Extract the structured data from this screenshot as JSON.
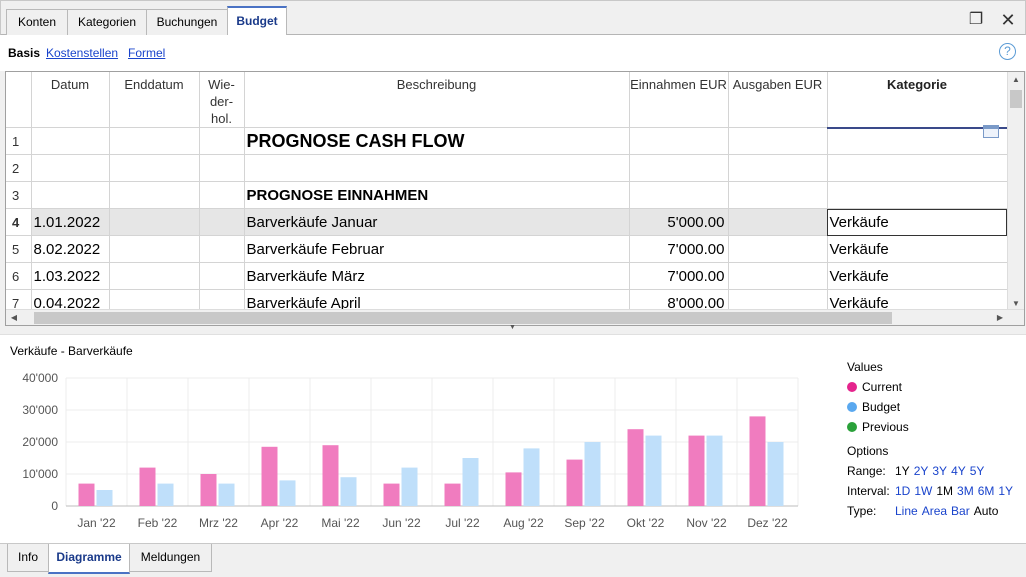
{
  "top_tabs": [
    {
      "label": "Konten",
      "active": false
    },
    {
      "label": "Kategorien",
      "active": false
    },
    {
      "label": "Buchungen",
      "active": false
    },
    {
      "label": "Budget",
      "active": true
    }
  ],
  "sub_views": [
    {
      "label": "Basis",
      "current": true
    },
    {
      "label": "Kostenstellen",
      "current": false
    },
    {
      "label": "Formel",
      "current": false
    }
  ],
  "help_label": "?",
  "columns": {
    "datum": "Datum",
    "enddatum": "Enddatum",
    "wiederholen": "Wie-\nder-\nhol.",
    "beschreibung": "Beschreibung",
    "einnahmen": "Einnahmen EUR",
    "ausgaben": "Ausgaben EUR",
    "kategorie": "Kategorie"
  },
  "rows": [
    {
      "nr": "1",
      "datum": "",
      "enddatum": "",
      "wiederholen": "",
      "beschreibung": "PROGNOSE CASH FLOW",
      "einnahmen": "",
      "ausgaben": "",
      "kategorie": "",
      "style": "big"
    },
    {
      "nr": "2",
      "datum": "",
      "enddatum": "",
      "wiederholen": "",
      "beschreibung": "",
      "einnahmen": "",
      "ausgaben": "",
      "kategorie": "",
      "style": ""
    },
    {
      "nr": "3",
      "datum": "",
      "enddatum": "",
      "wiederholen": "",
      "beschreibung": "PROGNOSE EINNAHMEN",
      "einnahmen": "",
      "ausgaben": "",
      "kategorie": "",
      "style": "section"
    },
    {
      "nr": "4",
      "datum": "1.01.2022",
      "enddatum": "",
      "wiederholen": "",
      "beschreibung": "Barverkäufe Januar",
      "einnahmen": "5'000.00",
      "ausgaben": "",
      "kategorie": "Verkäufe",
      "style": "selected"
    },
    {
      "nr": "5",
      "datum": "8.02.2022",
      "enddatum": "",
      "wiederholen": "",
      "beschreibung": "Barverkäufe Februar",
      "einnahmen": "7'000.00",
      "ausgaben": "",
      "kategorie": "Verkäufe",
      "style": ""
    },
    {
      "nr": "6",
      "datum": "1.03.2022",
      "enddatum": "",
      "wiederholen": "",
      "beschreibung": "Barverkäufe März",
      "einnahmen": "7'000.00",
      "ausgaben": "",
      "kategorie": "Verkäufe",
      "style": ""
    },
    {
      "nr": "7",
      "datum": "0.04.2022",
      "enddatum": "",
      "wiederholen": "",
      "beschreibung": "Barverkäufe April",
      "einnahmen": "8'000.00",
      "ausgaben": "",
      "kategorie": "Verkäufe",
      "style": ""
    }
  ],
  "chart_title": "Verkäufe - Barverkäufe",
  "chart_data": {
    "type": "bar",
    "title": "Verkäufe - Barverkäufe",
    "categories": [
      "Jan '22",
      "Feb '22",
      "Mrz '22",
      "Apr '22",
      "Mai '22",
      "Jun '22",
      "Jul '22",
      "Aug '22",
      "Sep '22",
      "Okt '22",
      "Nov '22",
      "Dez '22"
    ],
    "y_ticks": [
      "0",
      "10'000",
      "20'000",
      "30'000",
      "40'000"
    ],
    "ylim": [
      0,
      40000
    ],
    "grid": true,
    "series": [
      {
        "name": "Current",
        "color": "#f07cbf",
        "values": [
          7000,
          12000,
          10000,
          18500,
          19000,
          7000,
          7000,
          10500,
          14500,
          24000,
          22000,
          28000
        ]
      },
      {
        "name": "Budget",
        "color": "#bfdffa",
        "values": [
          5000,
          7000,
          7000,
          8000,
          9000,
          12000,
          15000,
          18000,
          20000,
          22000,
          22000,
          20000
        ]
      }
    ]
  },
  "legend": {
    "heading": "Values",
    "items": [
      {
        "label": "Current",
        "color": "#e5248d"
      },
      {
        "label": "Budget",
        "color": "#5aa8ef"
      },
      {
        "label": "Previous",
        "color": "#2aa13a"
      }
    ]
  },
  "options": {
    "heading": "Options",
    "range_label": "Range:",
    "range": [
      {
        "t": "1Y",
        "link": false
      },
      {
        "t": "2Y",
        "link": true
      },
      {
        "t": "3Y",
        "link": true
      },
      {
        "t": "4Y",
        "link": true
      },
      {
        "t": "5Y",
        "link": true
      }
    ],
    "interval_label": "Interval:",
    "interval": [
      {
        "t": "1D",
        "link": true
      },
      {
        "t": "1W",
        "link": true
      },
      {
        "t": "1M",
        "link": false
      },
      {
        "t": "3M",
        "link": true
      },
      {
        "t": "6M",
        "link": true
      },
      {
        "t": "1Y",
        "link": true
      }
    ],
    "type_label": "Type:",
    "type": [
      {
        "t": "Line",
        "link": true
      },
      {
        "t": "Area",
        "link": true
      },
      {
        "t": "Bar",
        "link": true
      },
      {
        "t": "Auto",
        "link": false
      }
    ]
  },
  "bottom_tabs": [
    {
      "label": "Info",
      "active": false
    },
    {
      "label": "Diagramme",
      "active": true
    },
    {
      "label": "Meldungen",
      "active": false
    }
  ]
}
